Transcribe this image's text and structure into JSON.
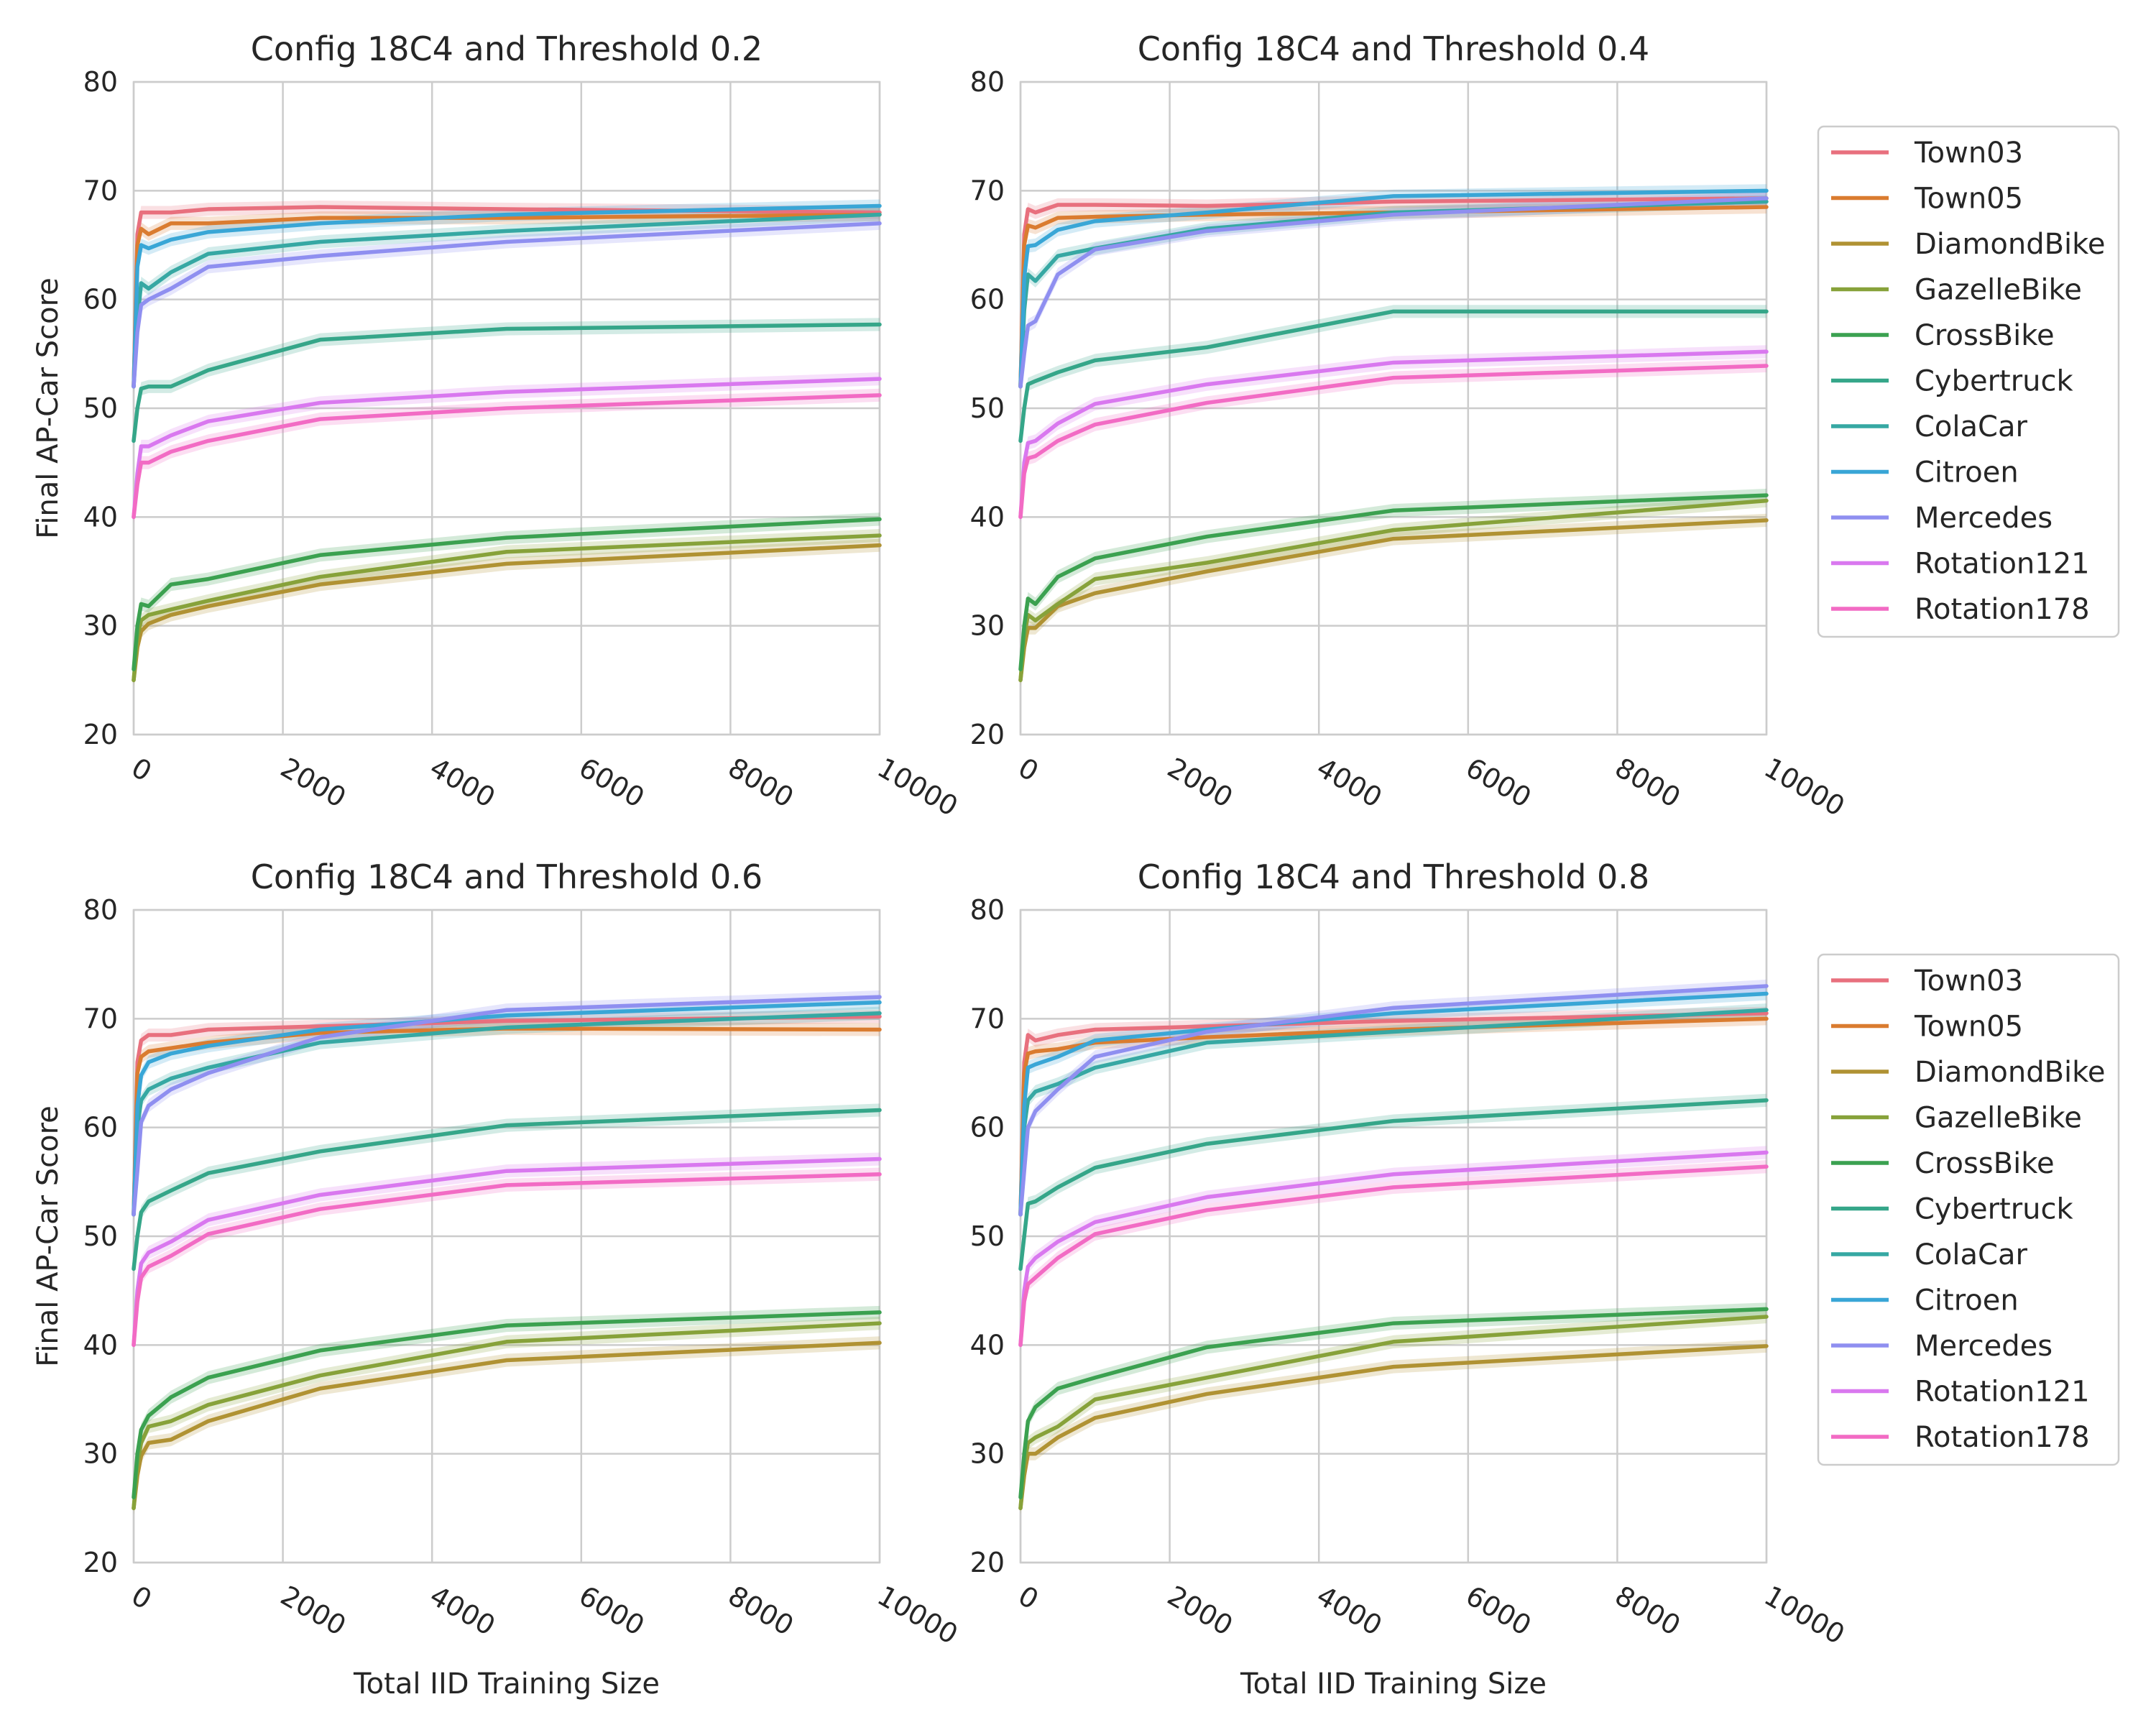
{
  "figure": {
    "ylabel": "Final AP-Car Score",
    "xlabel": "Total IID Training Size"
  },
  "legend": {
    "entries": [
      "Town03",
      "Town05",
      "DiamondBike",
      "GazelleBike",
      "CrossBike",
      "Cybertruck",
      "ColaCar",
      "Citroen",
      "Mercedes",
      "Rotation121",
      "Rotation178"
    ]
  },
  "colors": {
    "Town03": "#e8707e",
    "Town05": "#da7c30",
    "DiamondBike": "#b09233",
    "GazelleBike": "#87a23a",
    "CrossBike": "#3ba150",
    "Cybertruck": "#35a689",
    "ColaCar": "#36a8a3",
    "Citroen": "#39a6d6",
    "Mercedes": "#8f8ff0",
    "Rotation121": "#d978ef",
    "Rotation178": "#f26bc4"
  },
  "chart_data": [
    {
      "type": "line",
      "title": "Config 18C4 and Threshold 0.2",
      "xlabel": "Total IID Training Size",
      "ylabel": "Final AP-Car Score",
      "xlim": [
        0,
        10000
      ],
      "ylim": [
        20,
        80
      ],
      "xticks": [
        0,
        2000,
        4000,
        6000,
        8000,
        10000
      ],
      "yticks": [
        20,
        30,
        40,
        50,
        60,
        70,
        80
      ],
      "x": [
        0,
        50,
        100,
        200,
        500,
        1000,
        2500,
        5000,
        10000
      ],
      "series": [
        {
          "name": "Town03",
          "values": [
            52,
            66,
            68,
            68,
            68,
            68.3,
            68.5,
            68.3,
            68
          ]
        },
        {
          "name": "Town05",
          "values": [
            52,
            65,
            66.5,
            66,
            67,
            67,
            67.5,
            67.5,
            67.8
          ]
        },
        {
          "name": "DiamondBike",
          "values": [
            25,
            28,
            29.5,
            30.2,
            31,
            31.8,
            33.8,
            35.7,
            37.4
          ]
        },
        {
          "name": "GazelleBike",
          "values": [
            25,
            29,
            30.5,
            31,
            31.5,
            32.3,
            34.5,
            36.8,
            38.3
          ]
        },
        {
          "name": "CrossBike",
          "values": [
            26,
            30,
            32,
            31.8,
            33.8,
            34.3,
            36.5,
            38.1,
            39.8
          ]
        },
        {
          "name": "Cybertruck",
          "values": [
            47,
            50,
            51.8,
            52,
            52,
            53.5,
            56.3,
            57.3,
            57.7
          ]
        },
        {
          "name": "ColaCar",
          "values": [
            52,
            58,
            61.5,
            61,
            62.5,
            64.2,
            65.3,
            66.3,
            67.8
          ]
        },
        {
          "name": "Citroen",
          "values": [
            52,
            63,
            65,
            64.7,
            65.5,
            66.2,
            67,
            67.8,
            68.6
          ]
        },
        {
          "name": "Mercedes",
          "values": [
            52,
            57,
            59.5,
            60,
            61,
            63,
            64,
            65.3,
            67
          ]
        },
        {
          "name": "Rotation121",
          "values": [
            40,
            44,
            46.5,
            46.5,
            47.5,
            48.8,
            50.5,
            51.5,
            52.7
          ]
        },
        {
          "name": "Rotation178",
          "values": [
            40,
            43,
            45,
            45,
            46,
            47,
            49,
            50,
            51.2
          ]
        }
      ]
    },
    {
      "type": "line",
      "title": "Config 18C4 and Threshold 0.4",
      "xlabel": "Total IID Training Size",
      "ylabel": "Final AP-Car Score",
      "xlim": [
        0,
        10000
      ],
      "ylim": [
        20,
        80
      ],
      "xticks": [
        0,
        2000,
        4000,
        6000,
        8000,
        10000
      ],
      "yticks": [
        20,
        30,
        40,
        50,
        60,
        70,
        80
      ],
      "x": [
        0,
        50,
        100,
        200,
        500,
        1000,
        2500,
        5000,
        10000
      ],
      "series": [
        {
          "name": "Town03",
          "values": [
            52,
            66,
            68.3,
            68,
            68.7,
            68.7,
            68.6,
            69,
            69.3
          ]
        },
        {
          "name": "Town05",
          "values": [
            52,
            65,
            66.8,
            66.6,
            67.5,
            67.6,
            67.8,
            68,
            68.5
          ]
        },
        {
          "name": "DiamondBike",
          "values": [
            25,
            28,
            29.8,
            29.8,
            31.8,
            33,
            35,
            38,
            39.7
          ]
        },
        {
          "name": "GazelleBike",
          "values": [
            25,
            29,
            31,
            30.5,
            32,
            34.3,
            35.8,
            38.8,
            41.5
          ]
        },
        {
          "name": "CrossBike",
          "values": [
            26,
            30,
            32.5,
            32,
            34.5,
            36.2,
            38.2,
            40.6,
            42
          ]
        },
        {
          "name": "Cybertruck",
          "values": [
            47,
            50,
            52.2,
            52.5,
            53.3,
            54.4,
            55.6,
            58.9,
            58.9
          ]
        },
        {
          "name": "ColaCar",
          "values": [
            52,
            59,
            62.3,
            61.7,
            64,
            64.7,
            66.5,
            68,
            69
          ]
        },
        {
          "name": "Citroen",
          "values": [
            52,
            62,
            64.9,
            65,
            66.4,
            67.2,
            68,
            69.5,
            70
          ]
        },
        {
          "name": "Mercedes",
          "values": [
            52,
            55,
            57.6,
            58,
            62.3,
            64.6,
            66.3,
            67.8,
            69.3
          ]
        },
        {
          "name": "Rotation121",
          "values": [
            40,
            45,
            46.8,
            47,
            48.6,
            50.4,
            52.2,
            54.2,
            55.2
          ]
        },
        {
          "name": "Rotation178",
          "values": [
            40,
            44,
            45.4,
            45.6,
            47,
            48.5,
            50.5,
            52.8,
            53.9
          ]
        }
      ]
    },
    {
      "type": "line",
      "title": "Config 18C4 and Threshold 0.6",
      "xlabel": "Total IID Training Size",
      "ylabel": "Final AP-Car Score",
      "xlim": [
        0,
        10000
      ],
      "ylim": [
        20,
        80
      ],
      "xticks": [
        0,
        2000,
        4000,
        6000,
        8000,
        10000
      ],
      "yticks": [
        20,
        30,
        40,
        50,
        60,
        70,
        80
      ],
      "x": [
        0,
        50,
        100,
        200,
        500,
        1000,
        2500,
        5000,
        10000
      ],
      "series": [
        {
          "name": "Town03",
          "values": [
            52,
            66,
            68,
            68.5,
            68.5,
            69,
            69.3,
            69.8,
            70.2
          ]
        },
        {
          "name": "Town05",
          "values": [
            52,
            65,
            66.5,
            67,
            67.3,
            67.8,
            68.7,
            69.1,
            69
          ]
        },
        {
          "name": "DiamondBike",
          "values": [
            25,
            28,
            29.8,
            31,
            31.3,
            33,
            36,
            38.6,
            40.2
          ]
        },
        {
          "name": "GazelleBike",
          "values": [
            25,
            29,
            31,
            32.5,
            33,
            34.5,
            37.2,
            40.3,
            42
          ]
        },
        {
          "name": "CrossBike",
          "values": [
            26,
            30,
            32.2,
            33.5,
            35.2,
            37,
            39.5,
            41.8,
            43
          ]
        },
        {
          "name": "Cybertruck",
          "values": [
            47,
            50,
            52.2,
            53.2,
            54.2,
            55.8,
            57.8,
            60.2,
            61.6
          ]
        },
        {
          "name": "ColaCar",
          "values": [
            52,
            60,
            62.5,
            63.5,
            64.5,
            65.5,
            67.8,
            69.2,
            70.5
          ]
        },
        {
          "name": "Citroen",
          "values": [
            52,
            62,
            64.8,
            66,
            66.8,
            67.5,
            69,
            70.3,
            71.5
          ]
        },
        {
          "name": "Mercedes",
          "values": [
            52,
            56,
            60.5,
            62,
            63.5,
            65,
            68.3,
            70.8,
            72
          ]
        },
        {
          "name": "Rotation121",
          "values": [
            40,
            45,
            47.5,
            48.5,
            49.5,
            51.5,
            53.8,
            56,
            57.1
          ]
        },
        {
          "name": "Rotation178",
          "values": [
            40,
            44,
            46.2,
            47.2,
            48.2,
            50.2,
            52.5,
            54.7,
            55.7
          ]
        }
      ]
    },
    {
      "type": "line",
      "title": "Config 18C4 and Threshold 0.8",
      "xlabel": "Total IID Training Size",
      "ylabel": "Final AP-Car Score",
      "xlim": [
        0,
        10000
      ],
      "ylim": [
        20,
        80
      ],
      "xticks": [
        0,
        2000,
        4000,
        6000,
        8000,
        10000
      ],
      "yticks": [
        20,
        30,
        40,
        50,
        60,
        70,
        80
      ],
      "x": [
        0,
        50,
        100,
        200,
        500,
        1000,
        2500,
        5000,
        10000
      ],
      "series": [
        {
          "name": "Town03",
          "values": [
            52,
            66,
            68.5,
            68,
            68.5,
            69,
            69.3,
            69.8,
            70.5
          ]
        },
        {
          "name": "Town05",
          "values": [
            52,
            65,
            66.8,
            67,
            67.2,
            67.8,
            68.3,
            69,
            70
          ]
        },
        {
          "name": "DiamondBike",
          "values": [
            25,
            28,
            30,
            30,
            31.5,
            33.3,
            35.5,
            38,
            39.9
          ]
        },
        {
          "name": "GazelleBike",
          "values": [
            25,
            29,
            31,
            31.5,
            32.5,
            35,
            37,
            40.3,
            42.6
          ]
        },
        {
          "name": "CrossBike",
          "values": [
            26,
            30,
            33,
            34.3,
            36,
            37,
            39.8,
            42,
            43.3
          ]
        },
        {
          "name": "Cybertruck",
          "values": [
            47,
            50,
            53,
            53.2,
            54.5,
            56.3,
            58.5,
            60.6,
            62.5
          ]
        },
        {
          "name": "ColaCar",
          "values": [
            52,
            60,
            62.5,
            63.3,
            64,
            65.5,
            67.8,
            68.8,
            70.8
          ]
        },
        {
          "name": "Citroen",
          "values": [
            52,
            62,
            65.5,
            65.8,
            66.5,
            68,
            69,
            70.5,
            72.3
          ]
        },
        {
          "name": "Mercedes",
          "values": [
            52,
            56,
            60,
            61.5,
            63.5,
            66.5,
            68.8,
            71,
            73
          ]
        },
        {
          "name": "Rotation121",
          "values": [
            40,
            45,
            47.2,
            48,
            49.5,
            51.3,
            53.6,
            55.7,
            57.7
          ]
        },
        {
          "name": "Rotation178",
          "values": [
            40,
            44,
            45.6,
            46.2,
            48,
            50.2,
            52.4,
            54.5,
            56.4
          ]
        }
      ]
    }
  ]
}
